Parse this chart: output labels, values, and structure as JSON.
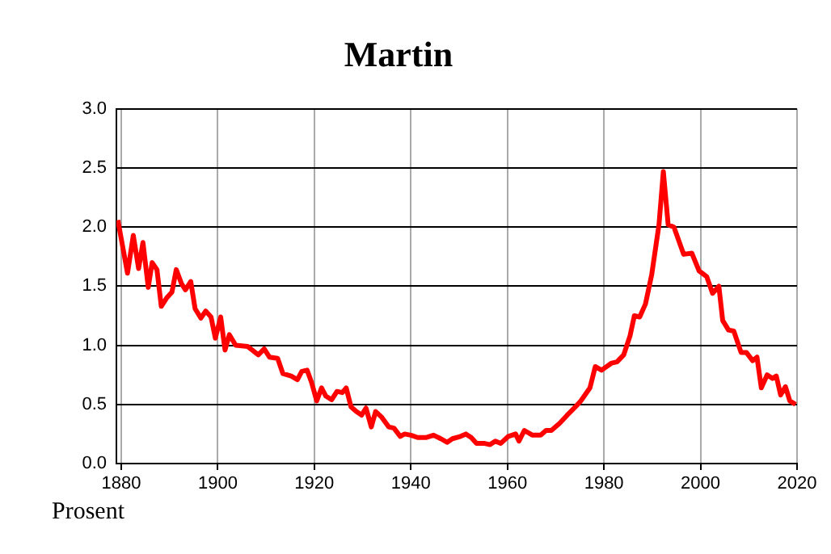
{
  "chart_data": {
    "type": "line",
    "title": "Martin",
    "ylabel": "Prosent",
    "x": [
      1879.3,
      1880.5,
      1881.3,
      1882.5,
      1883.6,
      1884.5,
      1885.6,
      1886.4,
      1887.4,
      1888.3,
      1889.4,
      1890.5,
      1891.4,
      1892.5,
      1893.3,
      1894.4,
      1895.3,
      1896.5,
      1897.5,
      1898.6,
      1899.5,
      1900.6,
      1901.5,
      1902.4,
      1903.7,
      1906.2,
      1908.4,
      1909.6,
      1910.7,
      1912.4,
      1913.5,
      1915.2,
      1916.5,
      1917.4,
      1918.5,
      1919.4,
      1920.5,
      1921.5,
      1922.4,
      1923.6,
      1924.7,
      1925.8,
      1926.6,
      1927.6,
      1928.7,
      1929.8,
      1930.7,
      1931.8,
      1932.7,
      1934,
      1935.4,
      1936.5,
      1937.8,
      1938.7,
      1940,
      1941.4,
      1943.1,
      1944.7,
      1946.2,
      1947.5,
      1948.6,
      1950.3,
      1951.4,
      1952.5,
      1953.6,
      1955.3,
      1956.4,
      1957.5,
      1958.6,
      1960.2,
      1961.7,
      1962.4,
      1963.5,
      1965.2,
      1966.9,
      1968,
      1969.1,
      1970.8,
      1972.4,
      1974.1,
      1975.2,
      1977.1,
      1978.2,
      1979.5,
      1981.6,
      1982.7,
      1984.1,
      1985.4,
      1986.3,
      1987.4,
      1988.6,
      1989.9,
      1991.4,
      1992.3,
      1993.3,
      1994.5,
      1996.5,
      1998.2,
      1999.7,
      2001.3,
      2002.5,
      2003.8,
      2004.6,
      2005.8,
      2006.9,
      2008.4,
      2009.5,
      2010.8,
      2011.7,
      2012.6,
      2013.8,
      2014.9,
      2015.7,
      2016.6,
      2017.6,
      2018.5,
      2019.7
    ],
    "series": [
      {
        "color": "#ff0000",
        "values": [
          2.06,
          1.79,
          1.61,
          1.93,
          1.65,
          1.87,
          1.49,
          1.7,
          1.64,
          1.33,
          1.4,
          1.45,
          1.64,
          1.52,
          1.47,
          1.54,
          1.31,
          1.23,
          1.29,
          1.24,
          1.06,
          1.24,
          0.96,
          1.09,
          1.0,
          0.99,
          0.92,
          0.97,
          0.9,
          0.89,
          0.76,
          0.74,
          0.71,
          0.78,
          0.79,
          0.69,
          0.53,
          0.64,
          0.57,
          0.54,
          0.61,
          0.6,
          0.64,
          0.48,
          0.44,
          0.41,
          0.47,
          0.31,
          0.44,
          0.39,
          0.31,
          0.3,
          0.23,
          0.25,
          0.24,
          0.22,
          0.22,
          0.24,
          0.21,
          0.18,
          0.21,
          0.23,
          0.25,
          0.22,
          0.17,
          0.17,
          0.16,
          0.19,
          0.17,
          0.23,
          0.25,
          0.19,
          0.28,
          0.24,
          0.24,
          0.28,
          0.28,
          0.34,
          0.41,
          0.48,
          0.53,
          0.64,
          0.82,
          0.79,
          0.85,
          0.86,
          0.92,
          1.08,
          1.25,
          1.24,
          1.35,
          1.6,
          2.02,
          2.47,
          2.02,
          2.0,
          1.77,
          1.78,
          1.63,
          1.58,
          1.44,
          1.5,
          1.21,
          1.13,
          1.12,
          0.94,
          0.94,
          0.87,
          0.9,
          0.64,
          0.75,
          0.72,
          0.74,
          0.58,
          0.65,
          0.53,
          0.5
        ]
      }
    ],
    "xlim": [
      1879,
      2020
    ],
    "xticks": [
      1880,
      1900,
      1920,
      1940,
      1960,
      1980,
      2000,
      2020
    ],
    "ylim": [
      0,
      3
    ],
    "yticks": [
      {
        "value": 0,
        "label": "0.0"
      },
      0.5,
      {
        "value": 1,
        "label": "1.0"
      },
      1.5,
      {
        "value": 2,
        "label": "2.0"
      },
      2.5,
      {
        "value": 3,
        "label": "3.0"
      }
    ],
    "grid": true,
    "legend": false,
    "marker": "none",
    "line_style": "solid"
  }
}
